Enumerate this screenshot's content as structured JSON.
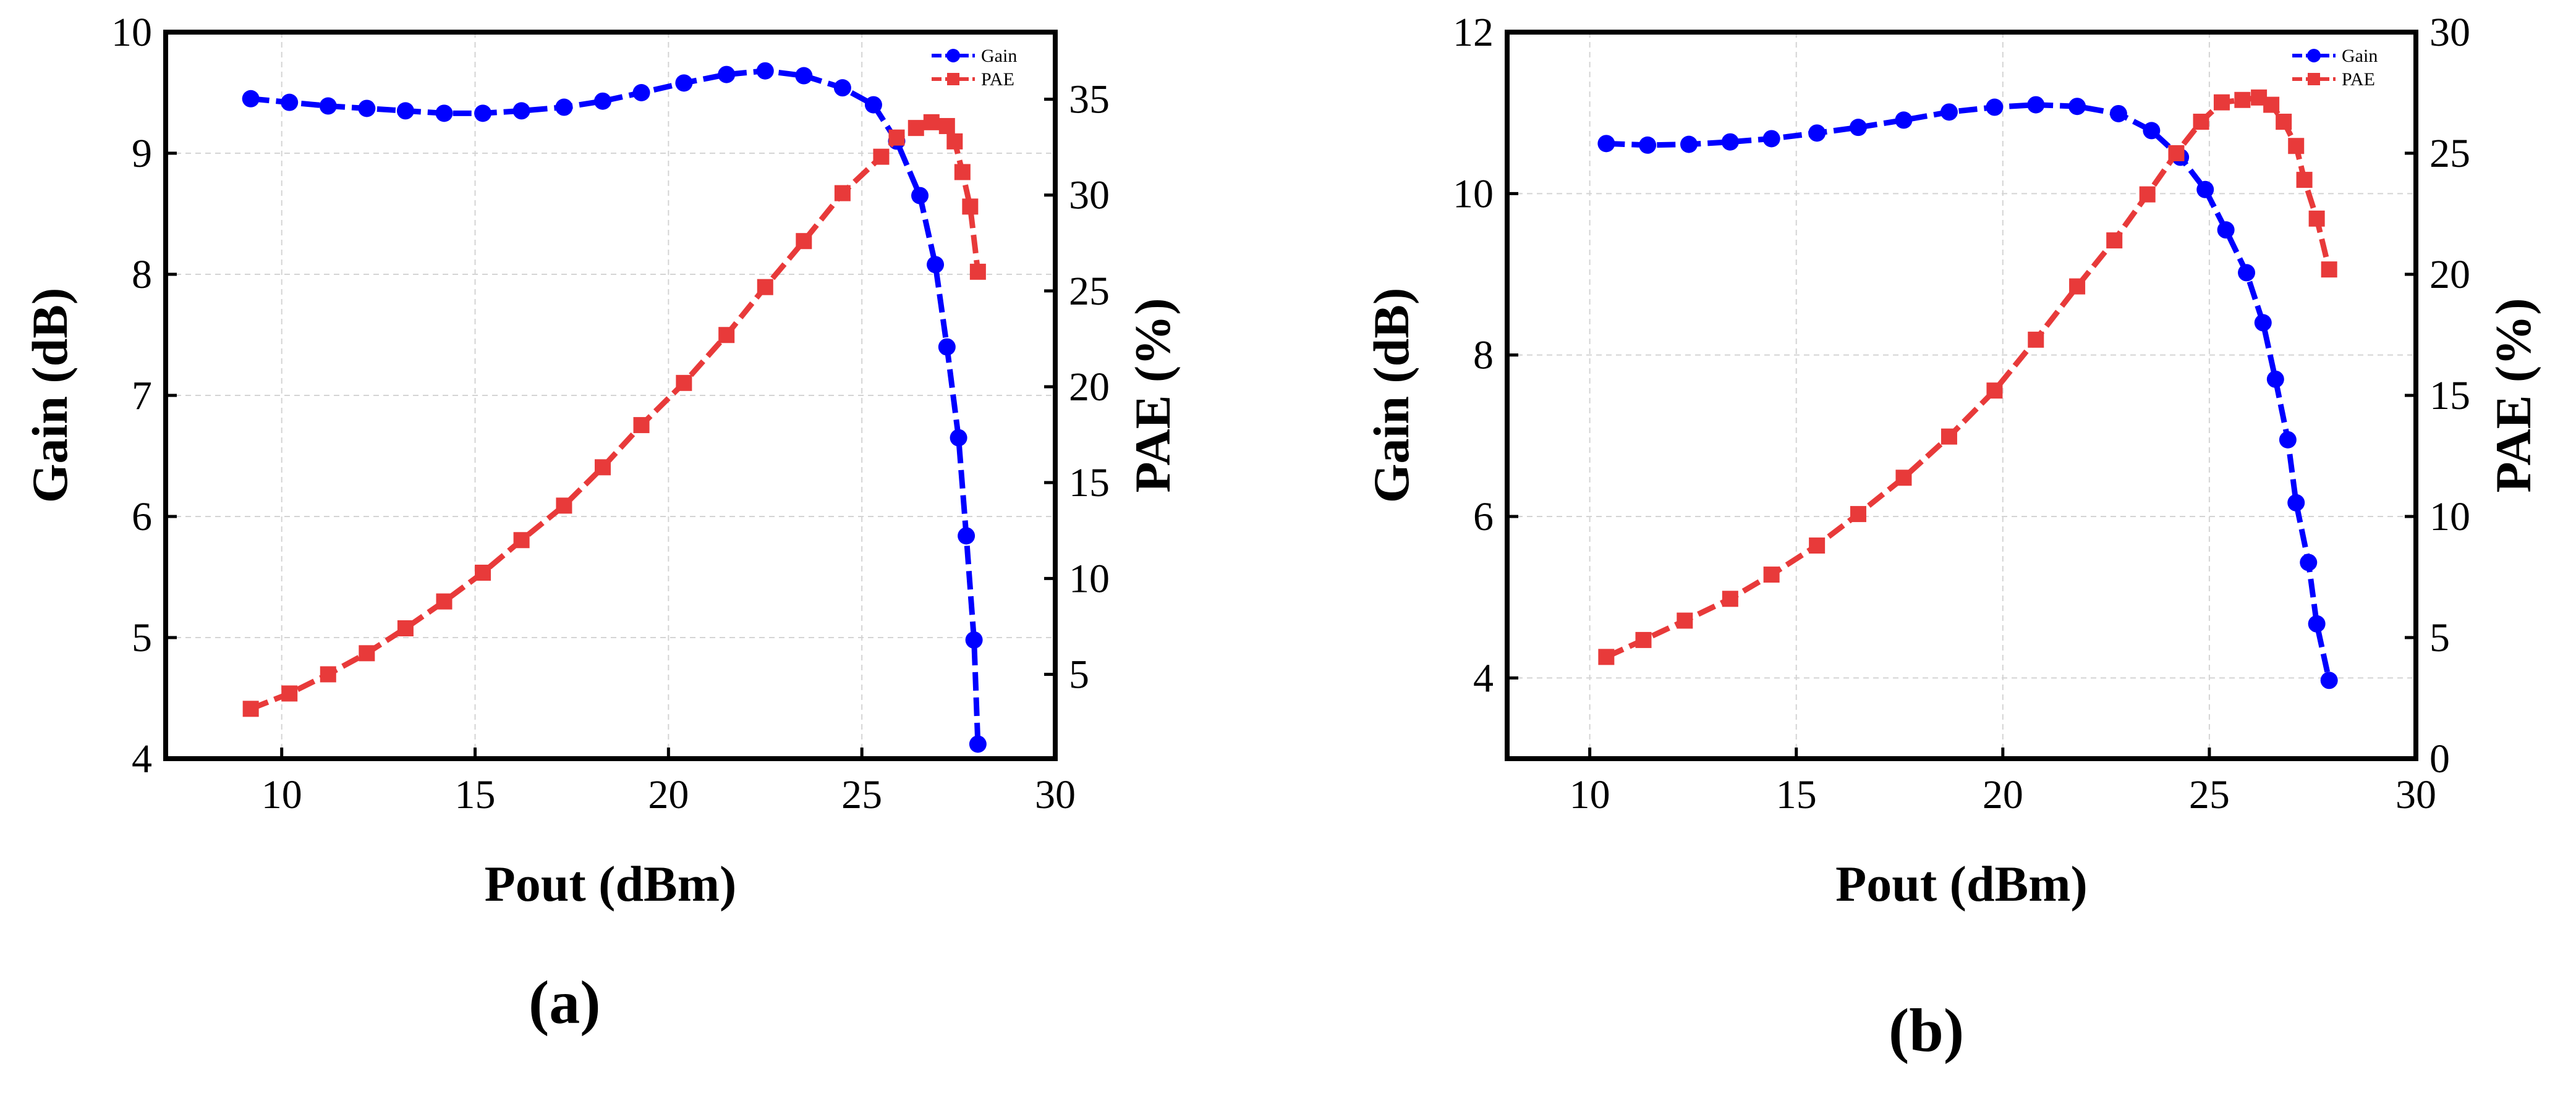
{
  "figure": {
    "panel_labels": [
      "(a)",
      "(b)"
    ]
  },
  "chart_data": [
    {
      "type": "line",
      "panel": "(a)",
      "title": "",
      "xlabel": "Pout (dBm)",
      "ylabel": "Gain (dB)",
      "y2label": "PAE (%)",
      "xlim": [
        7,
        30
      ],
      "ylim": [
        4,
        10
      ],
      "y2lim": [
        0.6,
        38.5
      ],
      "xticks": [
        10,
        15,
        20,
        25,
        30
      ],
      "yticks": [
        4,
        5,
        6,
        7,
        8,
        9,
        10
      ],
      "y2ticks": [
        5,
        10,
        15,
        20,
        25,
        30,
        35
      ],
      "grid": true,
      "legend_position": "top-right",
      "series": [
        {
          "name": "Gain",
          "axis": "left",
          "color": "#0000ff",
          "marker": "circle",
          "x": [
            9.2,
            10.2,
            11.2,
            12.2,
            13.2,
            14.2,
            15.2,
            16.2,
            17.3,
            18.3,
            19.3,
            20.4,
            21.5,
            22.5,
            23.5,
            24.5,
            25.3,
            25.9,
            26.5,
            26.9,
            27.2,
            27.5,
            27.7,
            27.9,
            28.0
          ],
          "values": [
            9.45,
            9.42,
            9.39,
            9.37,
            9.35,
            9.33,
            9.33,
            9.35,
            9.38,
            9.43,
            9.5,
            9.58,
            9.65,
            9.68,
            9.64,
            9.54,
            9.4,
            9.1,
            8.65,
            8.08,
            7.4,
            6.65,
            5.84,
            4.98,
            4.12
          ]
        },
        {
          "name": "PAE",
          "axis": "right",
          "color": "#e83a3a",
          "marker": "square",
          "x": [
            9.2,
            10.2,
            11.2,
            12.2,
            13.2,
            14.2,
            15.2,
            16.2,
            17.3,
            18.3,
            19.3,
            20.4,
            21.5,
            22.5,
            23.5,
            24.5,
            25.5,
            25.9,
            26.4,
            26.8,
            27.2,
            27.4,
            27.6,
            27.8,
            28.0
          ],
          "values": [
            3.2,
            4.0,
            5.0,
            6.1,
            7.4,
            8.8,
            10.3,
            12.0,
            13.8,
            15.8,
            18.0,
            20.2,
            22.7,
            25.2,
            27.6,
            30.1,
            32.0,
            33.0,
            33.5,
            33.8,
            33.6,
            32.8,
            31.2,
            29.4,
            26.0
          ]
        }
      ]
    },
    {
      "type": "line",
      "panel": "(b)",
      "title": "",
      "xlabel": "Pout (dBm)",
      "ylabel": "Gain (dB)",
      "y2label": "PAE (%)",
      "xlim": [
        8,
        30
      ],
      "ylim": [
        3,
        12
      ],
      "y2lim": [
        0,
        30
      ],
      "xticks": [
        10,
        15,
        20,
        25,
        30
      ],
      "yticks": [
        4,
        6,
        8,
        10,
        12
      ],
      "y2ticks": [
        0,
        5,
        10,
        15,
        20,
        25,
        30
      ],
      "grid": true,
      "legend_position": "top-right",
      "series": [
        {
          "name": "Gain",
          "axis": "left",
          "color": "#0000ff",
          "marker": "circle",
          "x": [
            10.4,
            11.4,
            12.4,
            13.4,
            14.4,
            15.5,
            16.5,
            17.6,
            18.7,
            19.8,
            20.8,
            21.8,
            22.8,
            23.6,
            24.3,
            24.9,
            25.4,
            25.9,
            26.3,
            26.6,
            26.9,
            27.1,
            27.4,
            27.6,
            27.9
          ],
          "values": [
            10.62,
            10.6,
            10.61,
            10.64,
            10.68,
            10.75,
            10.82,
            10.91,
            11.01,
            11.07,
            11.1,
            11.08,
            10.99,
            10.78,
            10.45,
            10.05,
            9.55,
            9.02,
            8.4,
            7.7,
            6.95,
            6.17,
            5.43,
            4.67,
            3.97
          ]
        },
        {
          "name": "PAE",
          "axis": "right",
          "color": "#e83a3a",
          "marker": "square",
          "x": [
            10.4,
            11.3,
            12.3,
            13.4,
            14.4,
            15.5,
            16.5,
            17.6,
            18.7,
            19.8,
            20.8,
            21.8,
            22.7,
            23.5,
            24.2,
            24.8,
            25.3,
            25.8,
            26.2,
            26.5,
            26.8,
            27.1,
            27.3,
            27.6,
            27.9
          ],
          "values": [
            4.2,
            4.9,
            5.7,
            6.6,
            7.6,
            8.8,
            10.1,
            11.6,
            13.3,
            15.2,
            17.3,
            19.5,
            21.4,
            23.3,
            25.0,
            26.3,
            27.1,
            27.2,
            27.3,
            27.0,
            26.3,
            25.3,
            23.9,
            22.3,
            20.2
          ]
        }
      ]
    }
  ]
}
